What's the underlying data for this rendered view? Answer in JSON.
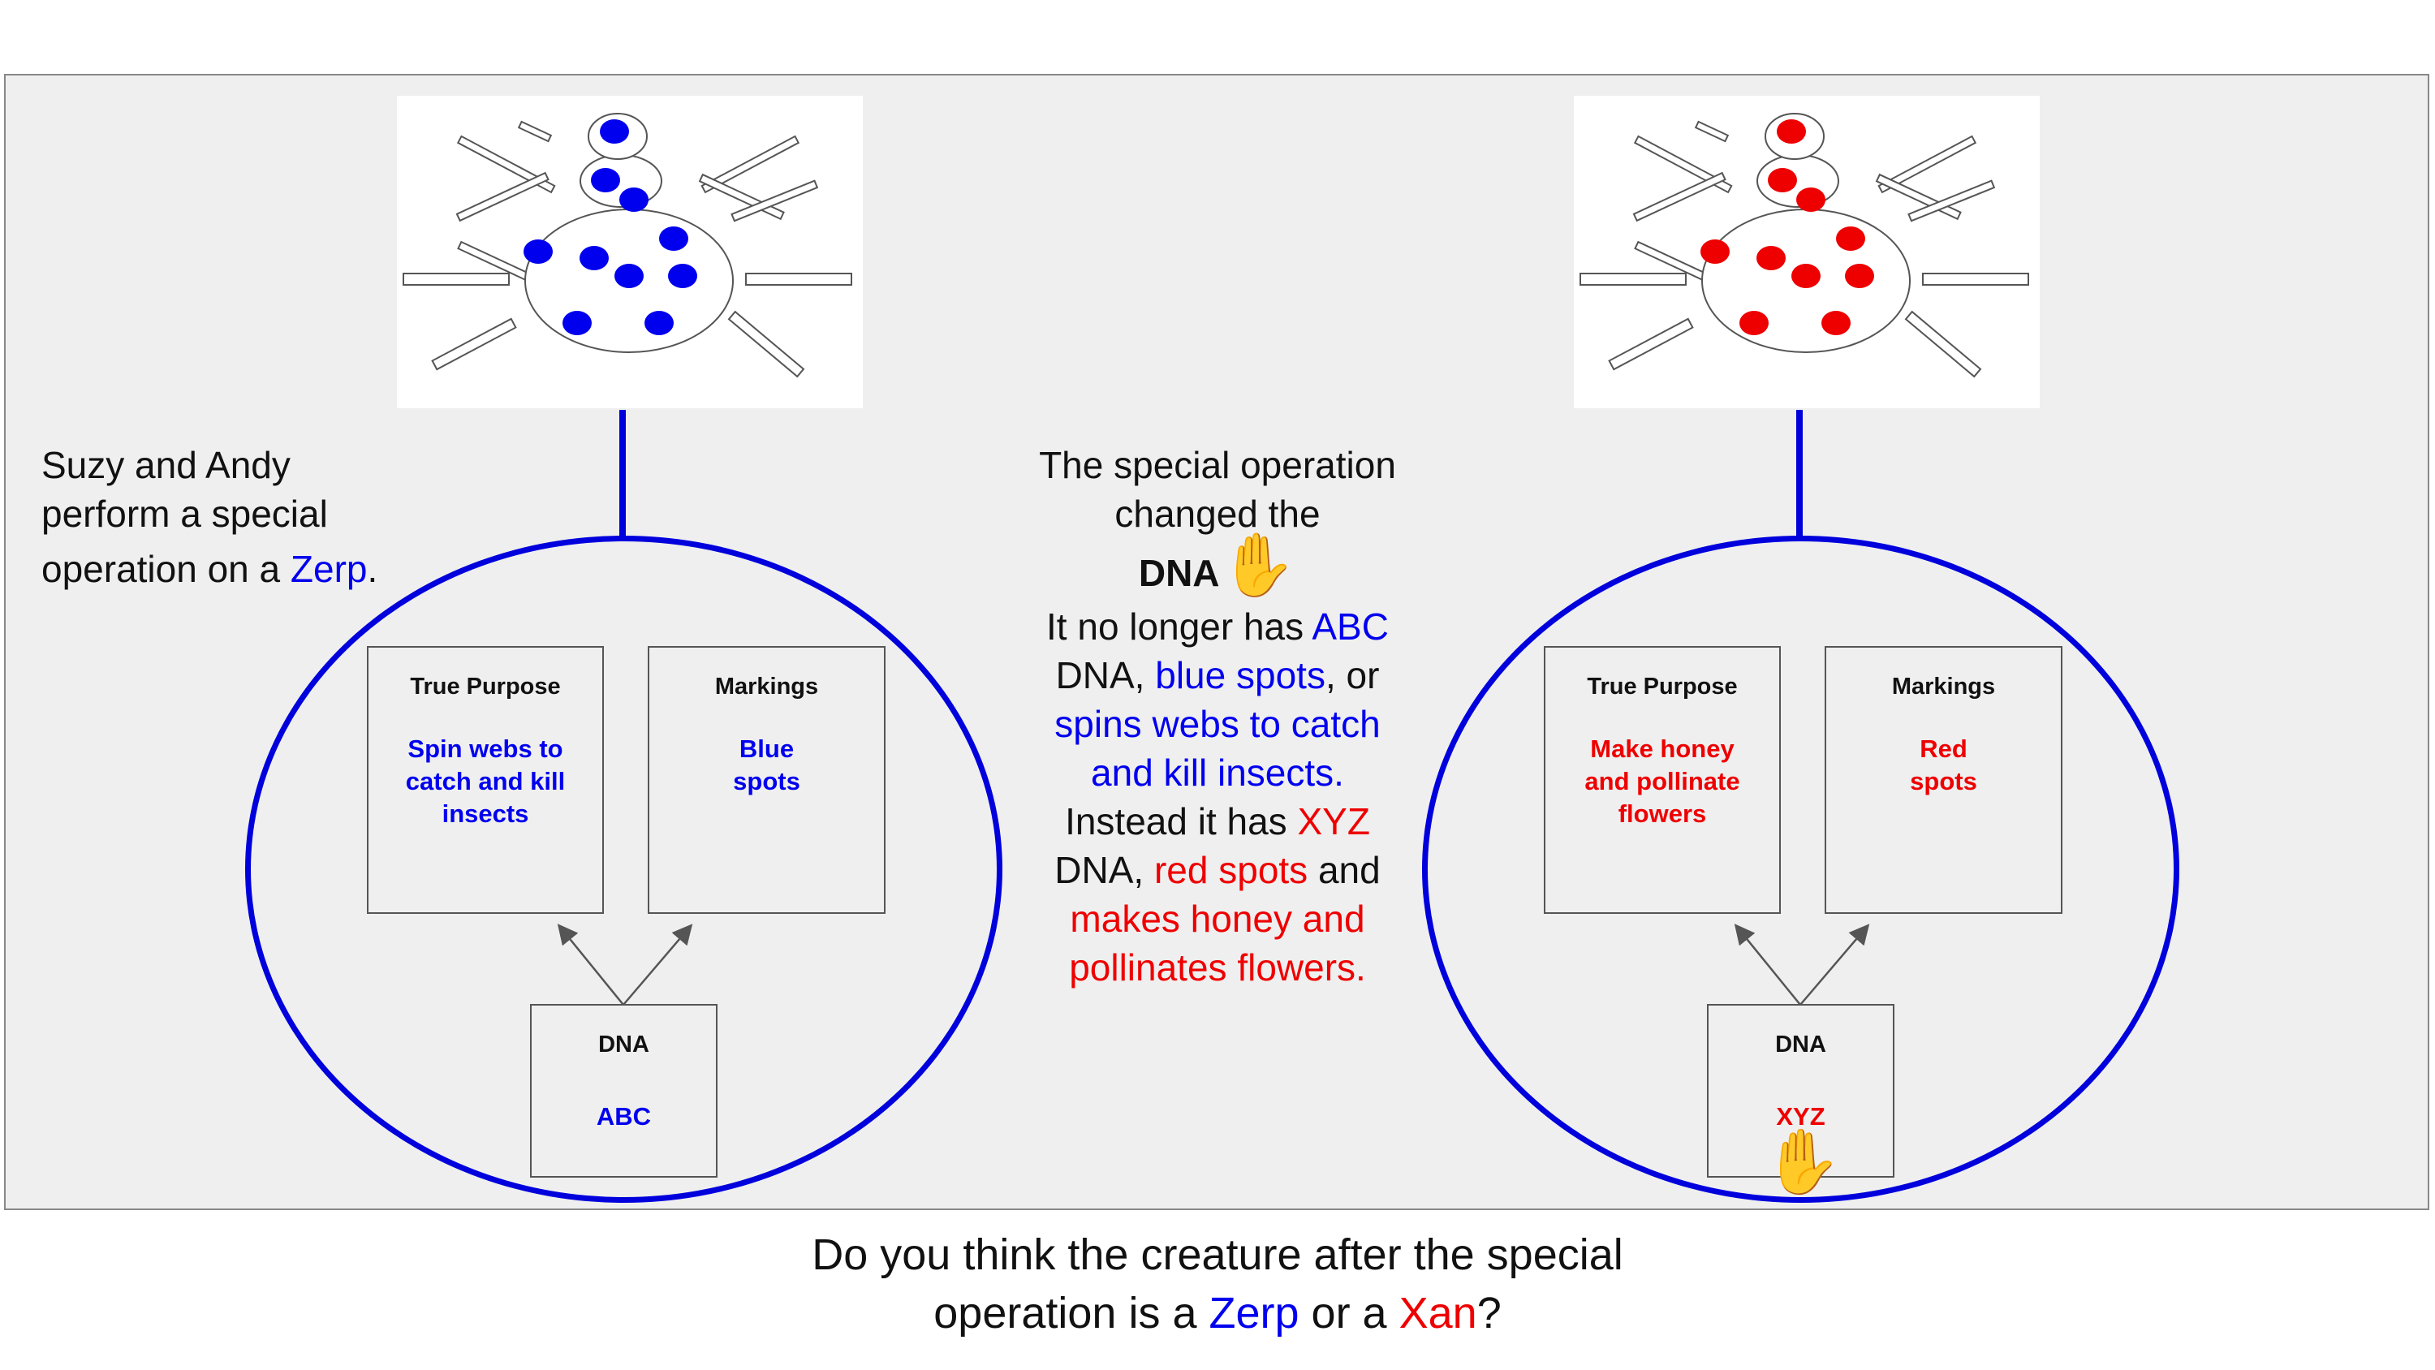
{
  "left_text": {
    "line1": "Suzy and Andy",
    "line2": "perform a special",
    "line3_pre": "operation on a ",
    "line3_highlight": "Zerp",
    "line3_post": "."
  },
  "middle_text": {
    "line1": "The special operation",
    "line2": "changed the",
    "dna_label": "DNA",
    "p2_1a": "It no longer has ",
    "p2_1b": "ABC",
    "p2_2a": "DNA, ",
    "p2_2b": "blue spots",
    "p2_2c": ", or",
    "p2_3": "spins webs to catch",
    "p2_4": "and kill insects.",
    "p2_5a": "Instead it has ",
    "p2_5b": "XYZ",
    "p2_6a": "DNA, ",
    "p2_6b": "red spots",
    "p2_6c": " and",
    "p2_7": "makes honey and",
    "p2_8": "pollinates flowers."
  },
  "left_creature": {
    "color": "#0000ee",
    "true_purpose_title": "True Purpose",
    "true_purpose_value": [
      "Spin webs to",
      "catch and kill",
      "insects"
    ],
    "markings_title": "Markings",
    "markings_value": [
      "Blue",
      "spots"
    ],
    "dna_title": "DNA",
    "dna_value": "ABC"
  },
  "right_creature": {
    "color": "#ee0000",
    "true_purpose_title": "True Purpose",
    "true_purpose_value": [
      "Make honey",
      "and pollinate",
      "flowers"
    ],
    "markings_title": "Markings",
    "markings_value": [
      "Red",
      "spots"
    ],
    "dna_title": "DNA",
    "dna_value": "XYZ"
  },
  "question": {
    "pre": "Do you think the creature after the special",
    "line2_pre": "operation is a ",
    "zerp": "Zerp",
    "mid": " or a ",
    "xan": "Xan",
    "post": "?"
  },
  "icons": {
    "hand": "raised-hand-icon",
    "hand_glyph": "✋"
  },
  "colors": {
    "blue": "#0000ee",
    "red": "#ee0000",
    "outline": "#0000dd"
  }
}
